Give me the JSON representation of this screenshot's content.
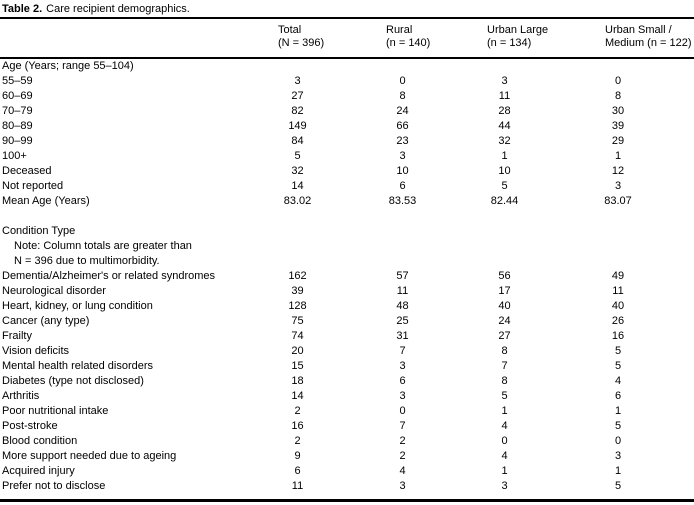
{
  "caption": {
    "label": "Table 2.",
    "text": "Care recipient demographics."
  },
  "table": {
    "columns": [
      {
        "line1": "Total",
        "line2": "(N = 396)"
      },
      {
        "line1": "Rural",
        "line2": "(n = 140)"
      },
      {
        "line1": "Urban Large",
        "line2": "(n = 134)"
      },
      {
        "line1": "Urban Small /",
        "line2": "Medium (n = 122)"
      }
    ],
    "rows": [
      {
        "type": "section",
        "label": "Age (Years; range 55–104)"
      },
      {
        "type": "data",
        "label": "55–59",
        "values": [
          "3",
          "0",
          "3",
          "0"
        ]
      },
      {
        "type": "data",
        "label": "60–69",
        "values": [
          "27",
          "8",
          "11",
          "8"
        ]
      },
      {
        "type": "data",
        "label": "70–79",
        "values": [
          "82",
          "24",
          "28",
          "30"
        ]
      },
      {
        "type": "data",
        "label": "80–89",
        "values": [
          "149",
          "66",
          "44",
          "39"
        ]
      },
      {
        "type": "data",
        "label": "90–99",
        "values": [
          "84",
          "23",
          "32",
          "29"
        ]
      },
      {
        "type": "data",
        "label": "100+",
        "values": [
          "5",
          "3",
          "1",
          "1"
        ]
      },
      {
        "type": "data",
        "label": "Deceased",
        "values": [
          "32",
          "10",
          "10",
          "12"
        ]
      },
      {
        "type": "data",
        "label": "Not reported",
        "values": [
          "14",
          "6",
          "5",
          "3"
        ]
      },
      {
        "type": "data",
        "label": "Mean Age (Years)",
        "values": [
          "83.02",
          "83.53",
          "82.44",
          "83.07"
        ]
      },
      {
        "type": "spacer",
        "label": ""
      },
      {
        "type": "section",
        "label": "Condition Type"
      },
      {
        "type": "note",
        "label": "Note: Column totals are greater than"
      },
      {
        "type": "note",
        "label": "N = 396 due to multimorbidity."
      },
      {
        "type": "data",
        "label": "Dementia/Alzheimer's or related syndromes",
        "values": [
          "162",
          "57",
          "56",
          "49"
        ]
      },
      {
        "type": "data",
        "label": "Neurological disorder",
        "values": [
          "39",
          "11",
          "17",
          "11"
        ]
      },
      {
        "type": "data",
        "label": "Heart, kidney, or lung condition",
        "values": [
          "128",
          "48",
          "40",
          "40"
        ]
      },
      {
        "type": "data",
        "label": "Cancer (any type)",
        "values": [
          "75",
          "25",
          "24",
          "26"
        ]
      },
      {
        "type": "data",
        "label": "Frailty",
        "values": [
          "74",
          "31",
          "27",
          "16"
        ]
      },
      {
        "type": "data",
        "label": "Vision deficits",
        "values": [
          "20",
          "7",
          "8",
          "5"
        ]
      },
      {
        "type": "data",
        "label": "Mental health related disorders",
        "values": [
          "15",
          "3",
          "7",
          "5"
        ]
      },
      {
        "type": "data",
        "label": "Diabetes (type not disclosed)",
        "values": [
          "18",
          "6",
          "8",
          "4"
        ]
      },
      {
        "type": "data",
        "label": "Arthritis",
        "values": [
          "14",
          "3",
          "5",
          "6"
        ]
      },
      {
        "type": "data",
        "label": "Poor nutritional intake",
        "values": [
          "2",
          "0",
          "1",
          "1"
        ]
      },
      {
        "type": "data",
        "label": "Post-stroke",
        "values": [
          "16",
          "7",
          "4",
          "5"
        ]
      },
      {
        "type": "data",
        "label": "Blood condition",
        "values": [
          "2",
          "2",
          "0",
          "0"
        ]
      },
      {
        "type": "data",
        "label": "More support needed due to ageing",
        "values": [
          "9",
          "2",
          "4",
          "3"
        ]
      },
      {
        "type": "data",
        "label": "Acquired injury",
        "values": [
          "6",
          "4",
          "1",
          "1"
        ]
      },
      {
        "type": "data",
        "label": "Prefer not to disclose",
        "values": [
          "11",
          "3",
          "3",
          "5"
        ]
      }
    ]
  }
}
